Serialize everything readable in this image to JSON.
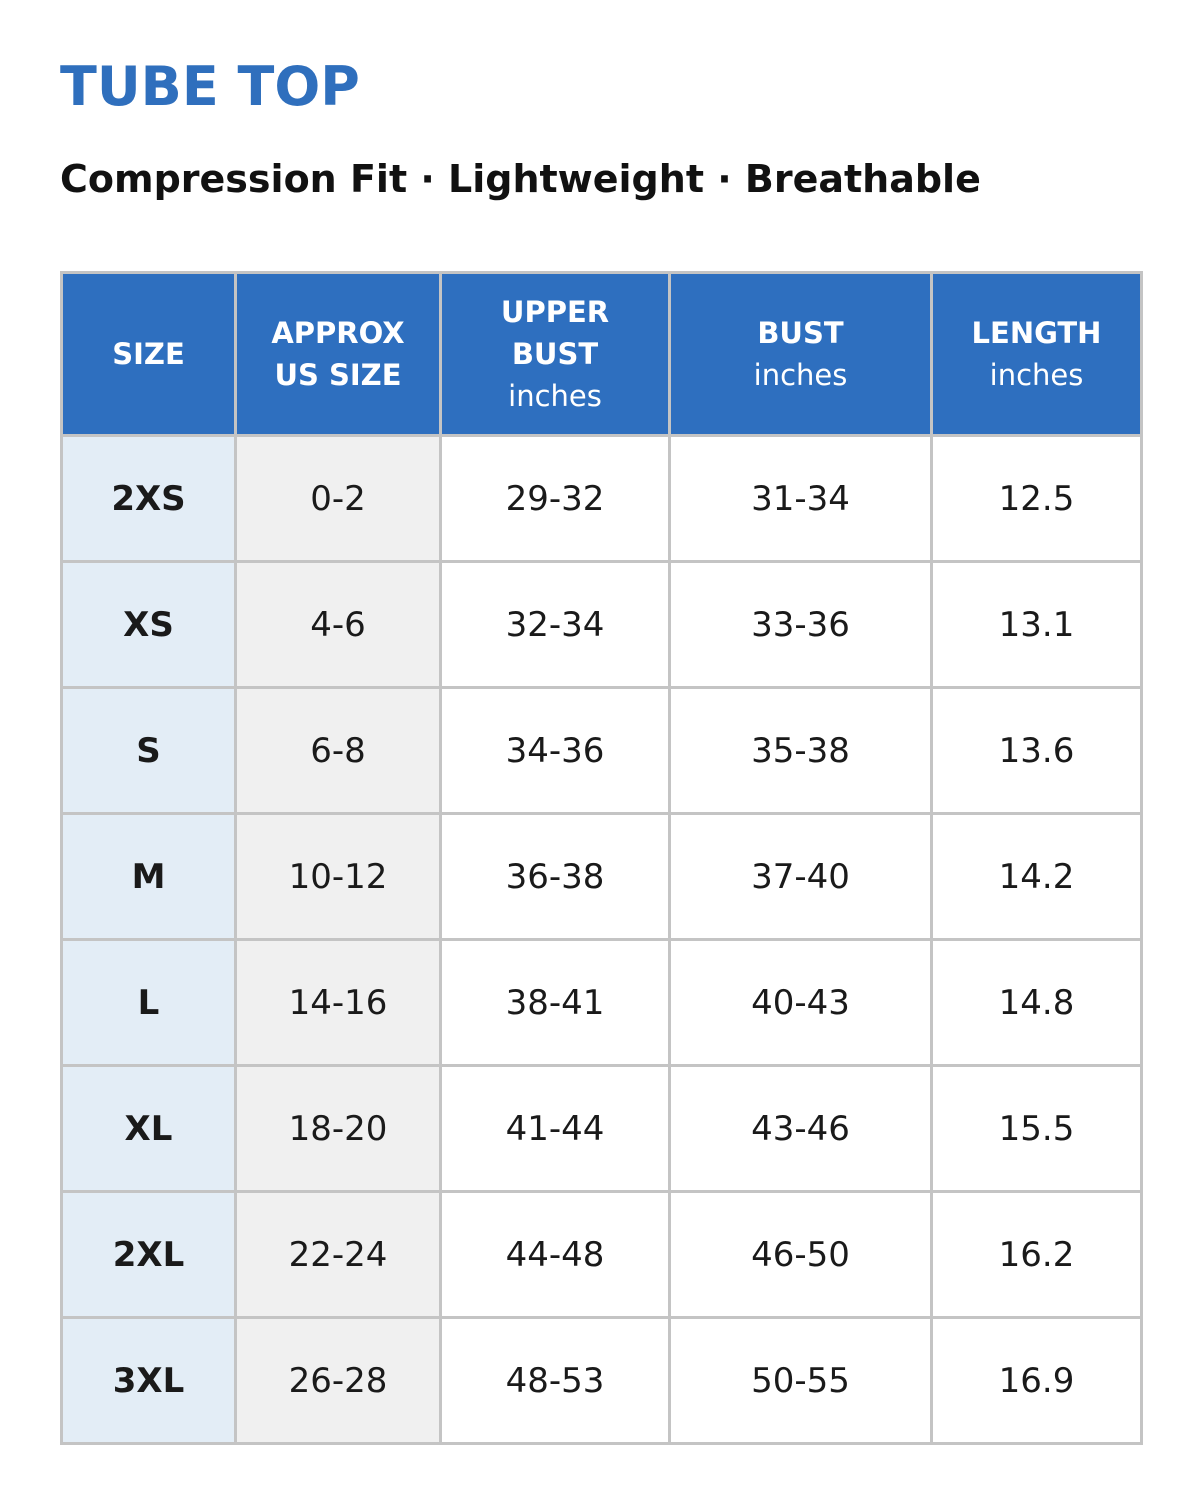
{
  "header": {
    "title": "TUBE TOP",
    "subtitle": "Compression Fit · Lightweight · Breathable"
  },
  "table": {
    "columns": [
      {
        "label": [
          "SIZE"
        ]
      },
      {
        "label": [
          "APPROX",
          "US SIZE"
        ]
      },
      {
        "label": [
          "UPPER",
          "BUST"
        ],
        "unit": "inches"
      },
      {
        "label": [
          "BUST"
        ],
        "unit": "inches"
      },
      {
        "label": [
          "LENGTH"
        ],
        "unit": "inches"
      }
    ],
    "rows": [
      [
        "2XS",
        "0-2",
        "29-32",
        "31-34",
        "12.5"
      ],
      [
        "XS",
        "4-6",
        "32-34",
        "33-36",
        "13.1"
      ],
      [
        "S",
        "6-8",
        "34-36",
        "35-38",
        "13.6"
      ],
      [
        "M",
        "10-12",
        "36-38",
        "37-40",
        "14.2"
      ],
      [
        "L",
        "14-16",
        "38-41",
        "40-43",
        "14.8"
      ],
      [
        "XL",
        "18-20",
        "41-44",
        "43-46",
        "15.5"
      ],
      [
        "2XL",
        "22-24",
        "44-48",
        "46-50",
        "16.2"
      ],
      [
        "3XL",
        "26-28",
        "48-53",
        "50-55",
        "16.9"
      ]
    ]
  }
}
